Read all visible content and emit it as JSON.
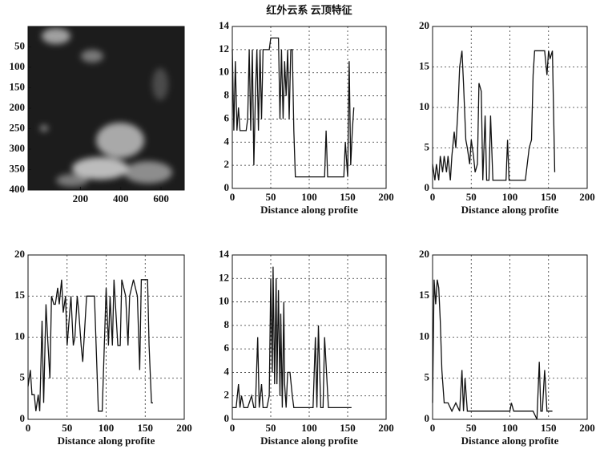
{
  "chart_data": [
    {
      "type": "image",
      "xlim": [
        -60,
        715
      ],
      "xticks": [
        200,
        400,
        600
      ],
      "ylim": [
        0,
        400
      ],
      "y_inverted": true,
      "yticks": [
        50,
        100,
        150,
        200,
        250,
        300,
        350,
        400
      ]
    },
    {
      "type": "line",
      "title": "红外云系 云顶特征",
      "xlabel": "Distance along profite",
      "color": "#111",
      "grid": true,
      "xlim": [
        0,
        200
      ],
      "xticks": [
        0,
        50,
        100,
        150,
        200
      ],
      "ylim": [
        0,
        14
      ],
      "yticks": [
        0,
        2,
        4,
        6,
        8,
        10,
        12,
        14
      ],
      "x": [
        0,
        2,
        4,
        6,
        8,
        10,
        12,
        15,
        18,
        20,
        22,
        24,
        26,
        28,
        30,
        32,
        34,
        36,
        38,
        40,
        42,
        44,
        46,
        48,
        50,
        55,
        60,
        62,
        64,
        66,
        68,
        70,
        72,
        74,
        76,
        78,
        80,
        82,
        90,
        100,
        110,
        120,
        122,
        124,
        130,
        140,
        145,
        147,
        150,
        152,
        154,
        156,
        158
      ],
      "values": [
        12,
        5,
        11,
        5,
        7,
        5,
        5,
        5,
        5,
        6,
        12,
        5,
        12,
        2,
        8,
        12,
        5,
        12,
        6,
        12,
        12,
        12,
        12,
        12,
        13,
        13,
        13,
        6,
        12,
        6,
        11,
        8,
        12,
        6,
        12,
        12,
        5,
        1,
        1,
        1,
        1,
        1,
        5,
        1,
        1,
        1,
        1,
        4,
        1,
        11,
        2,
        5,
        7
      ]
    },
    {
      "type": "line",
      "xlabel": "Distance along profite",
      "color": "#111",
      "grid": true,
      "xlim": [
        0,
        200
      ],
      "xticks": [
        0,
        50,
        100,
        150,
        200
      ],
      "ylim": [
        0,
        20
      ],
      "yticks": [
        0,
        5,
        10,
        15,
        20
      ],
      "x": [
        0,
        3,
        5,
        8,
        10,
        13,
        15,
        18,
        20,
        23,
        25,
        28,
        30,
        33,
        35,
        38,
        40,
        43,
        45,
        48,
        50,
        53,
        55,
        58,
        60,
        63,
        65,
        68,
        70,
        73,
        75,
        78,
        80,
        90,
        95,
        97,
        99,
        101,
        110,
        120,
        125,
        128,
        130,
        132,
        135,
        140,
        145,
        148,
        150,
        152,
        155,
        158
      ],
      "values": [
        3,
        1,
        3,
        1,
        4,
        2,
        4,
        2,
        4,
        1,
        4,
        7,
        5,
        10,
        15,
        17,
        13,
        6,
        5,
        3,
        6,
        4,
        2,
        3,
        13,
        12,
        1,
        9,
        1,
        1,
        9,
        1,
        1,
        1,
        1,
        6,
        1,
        1,
        1,
        1,
        5,
        6,
        14,
        17,
        17,
        17,
        17,
        14,
        17,
        16,
        17,
        2
      ]
    },
    {
      "type": "line",
      "xlabel": "Distance along profite",
      "color": "#111",
      "grid": true,
      "xlim": [
        0,
        200
      ],
      "xticks": [
        0,
        50,
        100,
        150,
        200
      ],
      "ylim": [
        0,
        20
      ],
      "yticks": [
        0,
        5,
        10,
        15,
        20
      ],
      "x": [
        0,
        3,
        5,
        8,
        10,
        13,
        15,
        18,
        20,
        23,
        25,
        28,
        30,
        33,
        35,
        38,
        40,
        43,
        45,
        48,
        50,
        55,
        58,
        60,
        63,
        65,
        68,
        70,
        75,
        80,
        85,
        90,
        95,
        100,
        103,
        105,
        108,
        110,
        115,
        118,
        120,
        125,
        128,
        130,
        135,
        140,
        143,
        145,
        148,
        150,
        153,
        155,
        158,
        160
      ],
      "values": [
        4,
        6,
        3,
        3,
        1,
        3,
        1,
        12,
        2,
        14,
        10,
        5,
        15,
        14,
        14,
        16,
        14,
        17,
        13,
        15,
        9,
        15,
        9,
        10,
        15,
        13,
        9,
        7,
        15,
        15,
        15,
        1,
        1,
        16,
        9,
        15,
        9,
        17,
        9,
        9,
        17,
        15,
        9,
        15,
        17,
        15,
        6,
        17,
        17,
        17,
        17,
        9,
        2,
        2
      ]
    },
    {
      "type": "line",
      "xlabel": "Distance along profite",
      "color": "#111",
      "grid": true,
      "xlim": [
        0,
        200
      ],
      "xticks": [
        0,
        50,
        100,
        150,
        200
      ],
      "ylim": [
        0,
        14
      ],
      "yticks": [
        0,
        2,
        4,
        6,
        8,
        10,
        12,
        14
      ],
      "x": [
        0,
        5,
        8,
        10,
        12,
        15,
        18,
        20,
        25,
        28,
        30,
        33,
        35,
        38,
        40,
        45,
        48,
        50,
        52,
        53,
        55,
        57,
        58,
        60,
        62,
        63,
        65,
        67,
        68,
        70,
        72,
        75,
        78,
        80,
        85,
        90,
        95,
        100,
        105,
        108,
        110,
        112,
        115,
        118,
        120,
        125,
        130,
        140,
        150,
        155
      ],
      "values": [
        1,
        1,
        3,
        1,
        2,
        1,
        1,
        1,
        2,
        1,
        1,
        7,
        1,
        3,
        1,
        1,
        2,
        12,
        4,
        13,
        3,
        12,
        3,
        11,
        2,
        9,
        1,
        10,
        3,
        1,
        4,
        4,
        2,
        1,
        1,
        1,
        1,
        1,
        1,
        7,
        1,
        8,
        1,
        1,
        7,
        1,
        1,
        1,
        1,
        1
      ]
    },
    {
      "type": "line",
      "xlabel": "Distance along profite",
      "color": "#111",
      "grid": true,
      "xlim": [
        0,
        200
      ],
      "xticks": [
        0,
        50,
        100,
        150,
        200
      ],
      "ylim": [
        0,
        20
      ],
      "yticks": [
        0,
        5,
        10,
        15,
        20
      ],
      "x": [
        0,
        2,
        4,
        6,
        8,
        10,
        12,
        15,
        20,
        25,
        30,
        35,
        38,
        40,
        42,
        45,
        50,
        60,
        70,
        80,
        90,
        95,
        100,
        102,
        105,
        110,
        120,
        130,
        135,
        138,
        140,
        142,
        145,
        148,
        150,
        155
      ],
      "values": [
        2,
        17,
        14,
        17,
        16,
        12,
        6,
        2,
        2,
        1,
        2,
        1,
        6,
        1,
        5,
        1,
        1,
        1,
        1,
        1,
        1,
        1,
        1,
        2,
        1,
        1,
        1,
        1,
        0,
        7,
        1,
        1,
        6,
        1,
        1,
        1
      ]
    }
  ]
}
